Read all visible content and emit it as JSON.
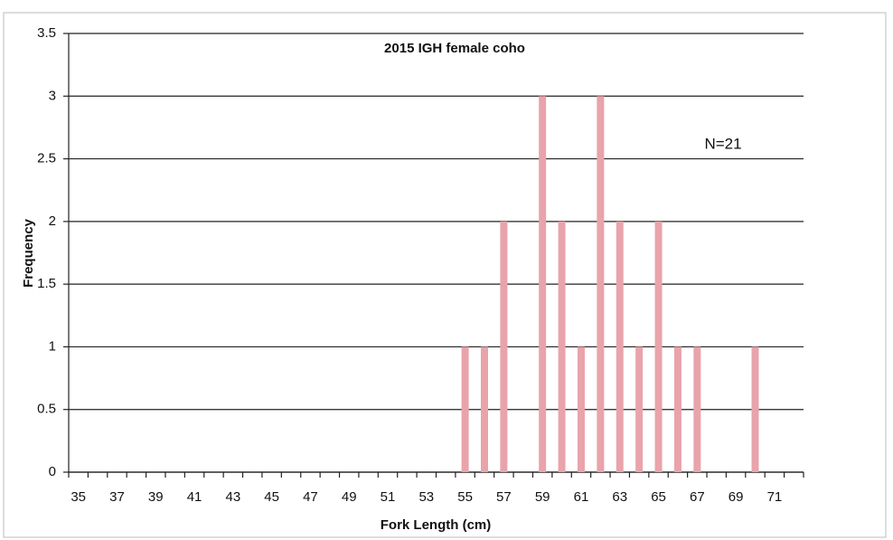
{
  "chart_data": {
    "type": "bar",
    "title": "2015 IGH female coho",
    "annotation": "N=21",
    "x_label": "Fork Length (cm)",
    "y_label": "Frequency",
    "categories": [
      "35",
      null,
      "37",
      null,
      "39",
      null,
      "41",
      null,
      "43",
      null,
      "45",
      null,
      "47",
      null,
      "49",
      null,
      "51",
      null,
      "53",
      null,
      "55",
      null,
      "57",
      null,
      "59",
      null,
      "61",
      null,
      "63",
      null,
      "65",
      null,
      "67",
      null,
      "69",
      null,
      "71",
      null
    ],
    "values": [
      0,
      0,
      0,
      0,
      0,
      0,
      0,
      0,
      0,
      0,
      0,
      0,
      0,
      0,
      0,
      0,
      0,
      0,
      0,
      0,
      1,
      1,
      2,
      0,
      3,
      2,
      1,
      3,
      2,
      1,
      2,
      1,
      1,
      0,
      0,
      1,
      0,
      0
    ],
    "color": "#e9a3ab",
    "ylim": [
      0,
      3.5
    ],
    "yticks": [
      0,
      0.5,
      1,
      1.5,
      2,
      2.5,
      3,
      3.5
    ],
    "grid": true
  }
}
